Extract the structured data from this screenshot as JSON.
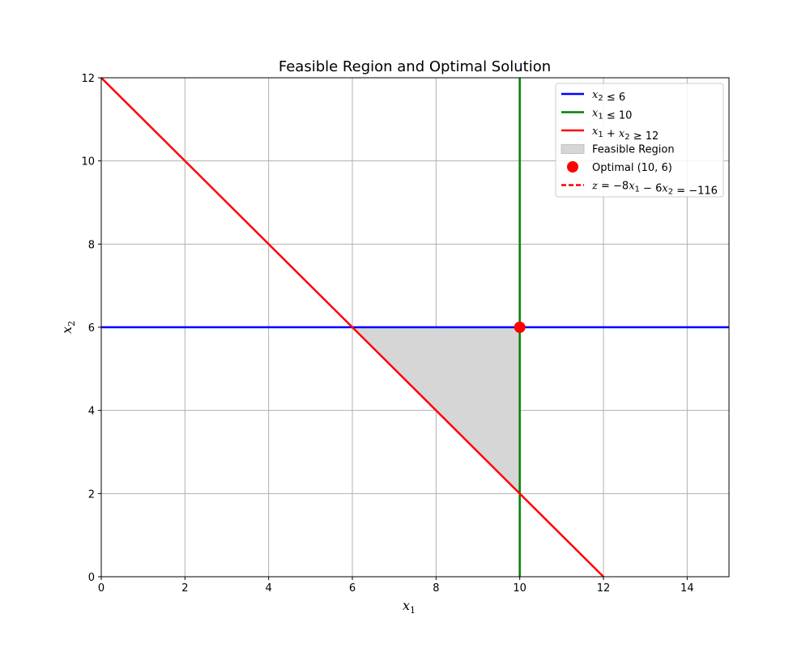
{
  "chart_data": {
    "type": "line",
    "title": "Feasible Region and Optimal Solution",
    "xlabel": "x",
    "xlabel_sub": "1",
    "ylabel": "x",
    "ylabel_sub": "2",
    "xlim": [
      0,
      15
    ],
    "ylim": [
      0,
      12
    ],
    "xticks": [
      0,
      2,
      4,
      6,
      8,
      10,
      12,
      14
    ],
    "yticks": [
      0,
      2,
      4,
      6,
      8,
      10,
      12
    ],
    "grid": true,
    "legend_position": "top-right",
    "series": [
      {
        "name": "x2 ≤ 6",
        "kind": "line",
        "color": "#0000ff",
        "x": [
          0,
          15
        ],
        "y": [
          6,
          6
        ]
      },
      {
        "name": "x1 ≤ 10",
        "kind": "line",
        "color": "#008000",
        "x": [
          10,
          10
        ],
        "y": [
          0,
          12
        ]
      },
      {
        "name": "x1 + x2 ≥ 12",
        "kind": "line",
        "color": "#ff0000",
        "x": [
          0,
          12
        ],
        "y": [
          12,
          0
        ]
      },
      {
        "name": "Feasible Region",
        "kind": "area",
        "color": "#d6d6d6",
        "x": [
          6,
          10,
          10
        ],
        "y": [
          6,
          6,
          2
        ]
      },
      {
        "name": "Optimal (10, 6)",
        "kind": "point",
        "color": "#ff0000",
        "x": [
          10
        ],
        "y": [
          6
        ]
      },
      {
        "name": "z = −8x1 − 6x2 = −116",
        "kind": "dashed-line",
        "color": "#ff0000",
        "x": [],
        "y": []
      }
    ]
  }
}
